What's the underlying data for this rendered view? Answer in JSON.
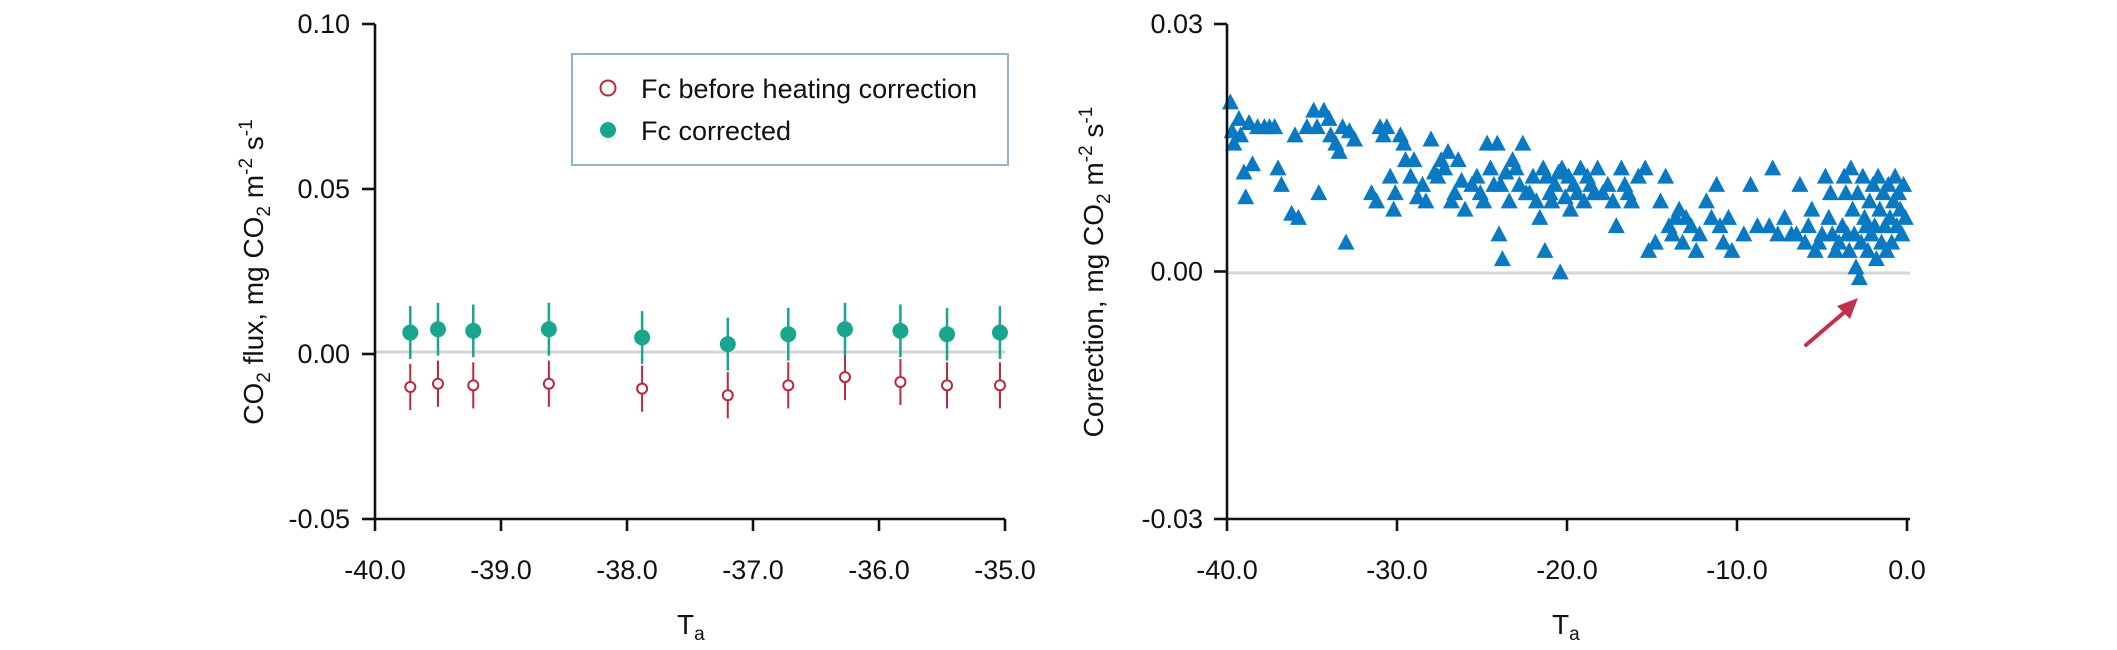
{
  "colors": {
    "corrected": "#1aa58e",
    "before": "#b8283f",
    "triangles": "#0a79c4",
    "arrow": "#c0324b",
    "legend_border": "#8fb3d0",
    "zero_line": "#d6d6d6"
  },
  "chart_data": [
    {
      "type": "scatter",
      "title": "",
      "xlabel_main": "T",
      "xlabel_sub": "a",
      "ylabel": {
        "p1": "CO",
        "s1": "2",
        "p2": " flux, mg CO",
        "s2": "2",
        "p3": " m",
        "s3": "-2",
        "p4": " s",
        "s4": "-1"
      },
      "xlim": [
        -40.0,
        -35.0
      ],
      "ylim": [
        -0.05,
        0.1
      ],
      "xticks": [
        "-40.0",
        "-39.0",
        "-38.0",
        "-37.0",
        "-36.0",
        "-35.0"
      ],
      "yticks": [
        "-0.05",
        "0.00",
        "0.05",
        "0.10"
      ],
      "grid": false,
      "zero_line": true,
      "legend_position": "top-right",
      "legend": [
        "Fc before heating correction",
        "Fc corrected"
      ],
      "series": [
        {
          "name": "Fc before heating correction",
          "marker": "open-circle",
          "x": [
            -39.72,
            -39.5,
            -39.22,
            -38.62,
            -37.88,
            -37.2,
            -36.72,
            -36.27,
            -35.83,
            -35.46,
            -35.04
          ],
          "y": [
            -0.01,
            -0.009,
            -0.0095,
            -0.009,
            -0.0105,
            -0.0125,
            -0.0095,
            -0.007,
            -0.0085,
            -0.0095,
            -0.0095
          ],
          "error": [
            0.007,
            0.007,
            0.007,
            0.007,
            0.007,
            0.007,
            0.007,
            0.007,
            0.007,
            0.007,
            0.007
          ]
        },
        {
          "name": "Fc corrected",
          "marker": "filled-circle",
          "x": [
            -39.72,
            -39.5,
            -39.22,
            -38.62,
            -37.88,
            -37.2,
            -36.72,
            -36.27,
            -35.83,
            -35.46,
            -35.04
          ],
          "y": [
            0.0065,
            0.0075,
            0.007,
            0.0075,
            0.005,
            0.003,
            0.006,
            0.0075,
            0.007,
            0.006,
            0.0065
          ],
          "error": [
            0.008,
            0.008,
            0.008,
            0.008,
            0.008,
            0.008,
            0.008,
            0.008,
            0.008,
            0.008,
            0.008
          ]
        }
      ]
    },
    {
      "type": "scatter",
      "title": "",
      "xlabel_main": "T",
      "xlabel_sub": "a",
      "ylabel": {
        "p1": "Correction, mg CO",
        "s1": "2",
        "p2": " m",
        "s2": "-2",
        "p3": " s",
        "s3": "-1"
      },
      "xlim": [
        -40.0,
        0.0
      ],
      "ylim": [
        -0.03,
        0.03
      ],
      "xticks": [
        "-40.0",
        "-30.0",
        "-20.0",
        "-10.0",
        "0.0"
      ],
      "yticks": [
        "-0.03",
        "0.00",
        "0.03"
      ],
      "grid": false,
      "zero_line": true,
      "annotation": "arrow pointing to lowest points near T = -3",
      "series": [
        {
          "marker": "filled-triangle",
          "points": [
            [
              -39.8,
              0.0205
            ],
            [
              -39.7,
              0.017
            ],
            [
              -39.6,
              0.0155
            ],
            [
              -39.3,
              0.0185
            ],
            [
              -39.2,
              0.0165
            ],
            [
              -39.0,
              0.012
            ],
            [
              -38.9,
              0.009
            ],
            [
              -38.7,
              0.018
            ],
            [
              -38.5,
              0.013
            ],
            [
              -38.2,
              0.0175
            ],
            [
              -37.8,
              0.0175
            ],
            [
              -37.5,
              0.0175
            ],
            [
              -37.2,
              0.0175
            ],
            [
              -37.0,
              0.0125
            ],
            [
              -36.8,
              0.0105
            ],
            [
              -36.2,
              0.007
            ],
            [
              -36.0,
              0.0165
            ],
            [
              -35.8,
              0.0065
            ],
            [
              -35.3,
              0.0175
            ],
            [
              -34.9,
              0.0195
            ],
            [
              -34.7,
              0.0175
            ],
            [
              -34.6,
              0.0095
            ],
            [
              -34.3,
              0.0195
            ],
            [
              -34.0,
              0.0185
            ],
            [
              -33.9,
              0.0165
            ],
            [
              -33.6,
              0.0155
            ],
            [
              -33.4,
              0.0145
            ],
            [
              -33.2,
              0.0175
            ],
            [
              -33.0,
              0.0035
            ],
            [
              -32.8,
              0.017
            ],
            [
              -32.5,
              0.016
            ],
            [
              -31.5,
              0.0095
            ],
            [
              -31.2,
              0.0085
            ],
            [
              -31.0,
              0.0175
            ],
            [
              -30.8,
              0.0165
            ],
            [
              -30.6,
              0.0175
            ],
            [
              -30.4,
              0.0115
            ],
            [
              -30.2,
              0.0075
            ],
            [
              -30.1,
              0.0095
            ],
            [
              -29.8,
              0.0165
            ],
            [
              -29.6,
              0.0155
            ],
            [
              -29.5,
              0.0135
            ],
            [
              -29.2,
              0.0115
            ],
            [
              -29.0,
              0.0135
            ],
            [
              -28.8,
              0.009
            ],
            [
              -28.5,
              0.0105
            ],
            [
              -28.3,
              0.0085
            ],
            [
              -28.0,
              0.016
            ],
            [
              -27.8,
              0.012
            ],
            [
              -27.6,
              0.0115
            ],
            [
              -27.4,
              0.0135
            ],
            [
              -27.2,
              0.0125
            ],
            [
              -27.0,
              0.0145
            ],
            [
              -26.8,
              0.0085
            ],
            [
              -26.6,
              0.0095
            ],
            [
              -26.4,
              0.0135
            ],
            [
              -26.2,
              0.011
            ],
            [
              -26.0,
              0.0075
            ],
            [
              -25.6,
              0.0105
            ],
            [
              -25.3,
              0.0115
            ],
            [
              -25.1,
              0.0095
            ],
            [
              -24.9,
              0.0085
            ],
            [
              -24.7,
              0.0155
            ],
            [
              -24.5,
              0.0125
            ],
            [
              -24.3,
              0.0105
            ],
            [
              -24.1,
              0.0155
            ],
            [
              -24.0,
              0.0045
            ],
            [
              -23.9,
              0.0105
            ],
            [
              -23.8,
              0.0015
            ],
            [
              -23.6,
              0.012
            ],
            [
              -23.4,
              0.0085
            ],
            [
              -23.2,
              0.0135
            ],
            [
              -23.0,
              0.0125
            ],
            [
              -22.8,
              0.0105
            ],
            [
              -22.6,
              0.0155
            ],
            [
              -22.4,
              0.0095
            ],
            [
              -22.2,
              0.0095
            ],
            [
              -22.0,
              0.0115
            ],
            [
              -21.8,
              0.0085
            ],
            [
              -21.6,
              0.0065
            ],
            [
              -21.4,
              0.0125
            ],
            [
              -21.3,
              0.0025
            ],
            [
              -21.2,
              0.0115
            ],
            [
              -21.0,
              0.0095
            ],
            [
              -20.9,
              0.0085
            ],
            [
              -20.7,
              0.0105
            ],
            [
              -20.5,
              0.012
            ],
            [
              -20.4,
              -0.0001
            ],
            [
              -20.3,
              0.0125
            ],
            [
              -20.1,
              0.009
            ],
            [
              -19.9,
              0.0115
            ],
            [
              -19.8,
              0.0075
            ],
            [
              -19.6,
              0.0105
            ],
            [
              -19.4,
              0.0095
            ],
            [
              -19.2,
              0.0125
            ],
            [
              -19.0,
              0.0085
            ],
            [
              -18.8,
              0.0115
            ],
            [
              -18.6,
              0.0105
            ],
            [
              -18.4,
              0.0095
            ],
            [
              -18.2,
              0.0125
            ],
            [
              -17.9,
              0.0095
            ],
            [
              -17.6,
              0.0105
            ],
            [
              -17.3,
              0.0085
            ],
            [
              -17.1,
              0.0055
            ],
            [
              -16.8,
              0.0125
            ],
            [
              -16.6,
              0.0105
            ],
            [
              -16.4,
              0.0095
            ],
            [
              -16.2,
              0.0085
            ],
            [
              -15.8,
              0.0115
            ],
            [
              -15.4,
              0.0125
            ],
            [
              -15.2,
              0.0025
            ],
            [
              -14.8,
              0.0035
            ],
            [
              -14.5,
              0.0085
            ],
            [
              -14.2,
              0.0115
            ],
            [
              -14.0,
              0.0055
            ],
            [
              -13.8,
              0.0045
            ],
            [
              -13.6,
              0.0065
            ],
            [
              -13.4,
              0.0075
            ],
            [
              -13.2,
              0.0035
            ],
            [
              -13.0,
              0.0065
            ],
            [
              -12.7,
              0.0055
            ],
            [
              -12.4,
              0.0025
            ],
            [
              -12.2,
              0.0045
            ],
            [
              -11.8,
              0.0085
            ],
            [
              -11.5,
              0.0065
            ],
            [
              -11.2,
              0.0105
            ],
            [
              -11.0,
              0.0055
            ],
            [
              -10.8,
              0.0035
            ],
            [
              -10.5,
              0.0065
            ],
            [
              -10.3,
              0.0025
            ],
            [
              -9.6,
              0.0045
            ],
            [
              -9.2,
              0.0105
            ],
            [
              -8.8,
              0.0055
            ],
            [
              -8.1,
              0.0055
            ],
            [
              -7.9,
              0.0125
            ],
            [
              -7.6,
              0.0045
            ],
            [
              -7.2,
              0.0065
            ],
            [
              -6.8,
              0.0045
            ],
            [
              -6.5,
              0.0045
            ],
            [
              -6.3,
              0.0105
            ],
            [
              -6.0,
              0.0035
            ],
            [
              -5.8,
              0.0055
            ],
            [
              -5.6,
              0.0075
            ],
            [
              -5.4,
              0.0025
            ],
            [
              -5.2,
              0.0035
            ],
            [
              -5.0,
              0.0045
            ],
            [
              -4.8,
              0.0115
            ],
            [
              -4.6,
              0.0065
            ],
            [
              -4.5,
              0.0095
            ],
            [
              -4.4,
              0.0045
            ],
            [
              -4.2,
              0.0025
            ],
            [
              -4.0,
              0.0035
            ],
            [
              -3.8,
              0.0055
            ],
            [
              -3.7,
              0.0115
            ],
            [
              -3.6,
              0.0095
            ],
            [
              -3.5,
              0.0045
            ],
            [
              -3.4,
              0.0025
            ],
            [
              -3.3,
              0.0125
            ],
            [
              -3.2,
              0.0075
            ],
            [
              -3.1,
              0.0045
            ],
            [
              -3.0,
              0.0005
            ],
            [
              -2.9,
              0.0095
            ],
            [
              -2.8,
              -0.0008
            ],
            [
              -2.7,
              0.0035
            ],
            [
              -2.6,
              0.0115
            ],
            [
              -2.5,
              0.0065
            ],
            [
              -2.4,
              0.0055
            ],
            [
              -2.3,
              0.0025
            ],
            [
              -2.2,
              0.0085
            ],
            [
              -2.1,
              0.0045
            ],
            [
              -2.0,
              0.0105
            ],
            [
              -1.9,
              0.0055
            ],
            [
              -1.8,
              0.0015
            ],
            [
              -1.7,
              0.0115
            ],
            [
              -1.6,
              0.0075
            ],
            [
              -1.5,
              0.0035
            ],
            [
              -1.4,
              0.0095
            ],
            [
              -1.3,
              0.0055
            ],
            [
              -1.2,
              0.0025
            ],
            [
              -1.1,
              0.0105
            ],
            [
              -1.0,
              0.0065
            ],
            [
              -0.9,
              0.0035
            ],
            [
              -0.8,
              0.0085
            ],
            [
              -0.7,
              0.0115
            ],
            [
              -0.6,
              0.0055
            ],
            [
              -0.5,
              0.0095
            ],
            [
              -0.4,
              0.0075
            ],
            [
              -0.3,
              0.0045
            ],
            [
              -0.2,
              0.0105
            ],
            [
              -0.1,
              0.0065
            ]
          ]
        }
      ]
    }
  ]
}
